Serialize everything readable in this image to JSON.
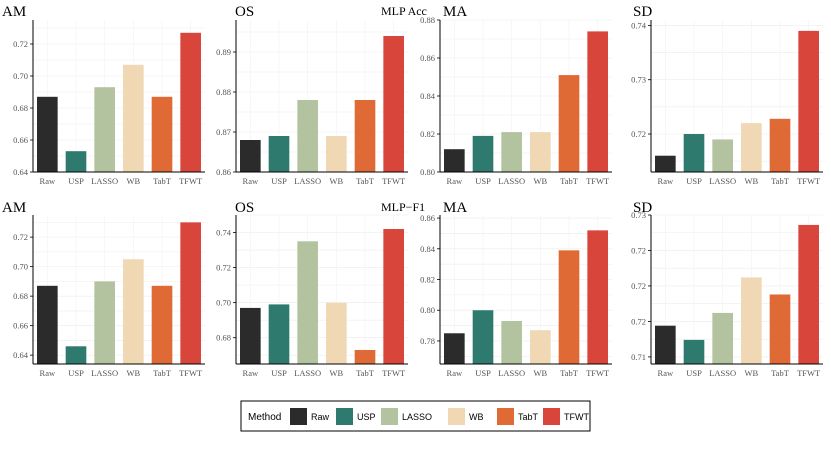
{
  "methods": [
    "Raw",
    "USP",
    "LASSO",
    "WB",
    "TabT",
    "TFWT"
  ],
  "colors": {
    "Raw": "#2b2b2b",
    "USP": "#2e7a6e",
    "LASSO": "#b3c3a0",
    "WB": "#efd8b3",
    "TabT": "#e06a35",
    "TFWT": "#d8453a"
  },
  "legend": {
    "title": "Method",
    "items": [
      "Raw",
      "USP",
      "LASSO",
      "WB",
      "TabT",
      "TFWT"
    ]
  },
  "chart_data": [
    {
      "type": "bar",
      "row": 0,
      "col": 0,
      "title": "AM",
      "metric": "",
      "categories": [
        "Raw",
        "USP",
        "LASSO",
        "WB",
        "TabT",
        "TFWT"
      ],
      "values": [
        0.687,
        0.653,
        0.693,
        0.707,
        0.687,
        0.727
      ],
      "ylim": [
        0.64,
        0.735
      ],
      "ticks": [
        0.64,
        0.66,
        0.68,
        0.7,
        0.72
      ],
      "tick_labels": [
        "0.64",
        "0.66",
        "0.68",
        "0.70",
        "0.72"
      ]
    },
    {
      "type": "bar",
      "row": 0,
      "col": 1,
      "title": "OS",
      "metric": "MLP Acc",
      "categories": [
        "Raw",
        "USP",
        "LASSO",
        "WB",
        "TabT",
        "TFWT"
      ],
      "values": [
        0.868,
        0.869,
        0.878,
        0.869,
        0.878,
        0.894
      ],
      "ylim": [
        0.86,
        0.898
      ],
      "ticks": [
        0.86,
        0.87,
        0.88,
        0.89
      ],
      "tick_labels": [
        "0.86",
        "0.87",
        "0.88",
        "0.89"
      ]
    },
    {
      "type": "bar",
      "row": 0,
      "col": 2,
      "title": "MA",
      "metric": "",
      "categories": [
        "Raw",
        "USP",
        "LASSO",
        "WB",
        "TabT",
        "TFWT"
      ],
      "values": [
        0.812,
        0.819,
        0.821,
        0.821,
        0.851,
        0.874
      ],
      "ylim": [
        0.8,
        0.88
      ],
      "ticks": [
        0.8,
        0.82,
        0.84,
        0.86,
        0.88
      ],
      "tick_labels": [
        "0.80",
        "0.82",
        "0.84",
        "0.86",
        "0.88"
      ]
    },
    {
      "type": "bar",
      "row": 0,
      "col": 3,
      "title": "SD",
      "metric": "",
      "categories": [
        "Raw",
        "USP",
        "LASSO",
        "WB",
        "TabT",
        "TFWT"
      ],
      "values": [
        0.716,
        0.72,
        0.719,
        0.722,
        0.7228,
        0.739
      ],
      "ylim": [
        0.713,
        0.741
      ],
      "ticks": [
        0.72,
        0.73,
        0.74
      ],
      "tick_labels": [
        "0.72",
        "0.73",
        "0.74"
      ]
    },
    {
      "type": "bar",
      "row": 1,
      "col": 0,
      "title": "AM",
      "metric": "",
      "categories": [
        "Raw",
        "USP",
        "LASSO",
        "WB",
        "TabT",
        "TFWT"
      ],
      "values": [
        0.687,
        0.646,
        0.69,
        0.705,
        0.687,
        0.73
      ],
      "ylim": [
        0.634,
        0.735
      ],
      "ticks": [
        0.64,
        0.66,
        0.68,
        0.7,
        0.72
      ],
      "tick_labels": [
        "0.64",
        "0.66",
        "0.68",
        "0.70",
        "0.72"
      ]
    },
    {
      "type": "bar",
      "row": 1,
      "col": 1,
      "title": "OS",
      "metric": "MLP−F1",
      "categories": [
        "Raw",
        "USP",
        "LASSO",
        "WB",
        "TabT",
        "TFWT"
      ],
      "values": [
        0.697,
        0.699,
        0.735,
        0.7,
        0.673,
        0.742
      ],
      "ylim": [
        0.665,
        0.75
      ],
      "ticks": [
        0.68,
        0.7,
        0.72,
        0.74
      ],
      "tick_labels": [
        "0.68",
        "0.70",
        "0.72",
        "0.74"
      ]
    },
    {
      "type": "bar",
      "row": 1,
      "col": 2,
      "title": "MA",
      "metric": "",
      "categories": [
        "Raw",
        "USP",
        "LASSO",
        "WB",
        "TabT",
        "TFWT"
      ],
      "values": [
        0.785,
        0.8,
        0.793,
        0.787,
        0.839,
        0.852
      ],
      "ylim": [
        0.765,
        0.862
      ],
      "ticks": [
        0.78,
        0.8,
        0.82,
        0.84,
        0.86
      ],
      "tick_labels": [
        "0.78",
        "0.80",
        "0.82",
        "0.84",
        "0.86"
      ]
    },
    {
      "type": "bar",
      "row": 1,
      "col": 3,
      "title": "SD",
      "metric": "",
      "categories": [
        "Raw",
        "USP",
        "LASSO",
        "WB",
        "TabT",
        "TFWT"
      ],
      "values": [
        0.7144,
        0.7124,
        0.7162,
        0.7212,
        0.7188,
        0.7286
      ],
      "ylim": [
        0.709,
        0.73
      ],
      "ticks": [
        0.71,
        0.715,
        0.72,
        0.725,
        0.73
      ],
      "tick_labels": [
        "0.71",
        "0.72",
        "0.72",
        "0.72",
        "0.73"
      ]
    }
  ]
}
